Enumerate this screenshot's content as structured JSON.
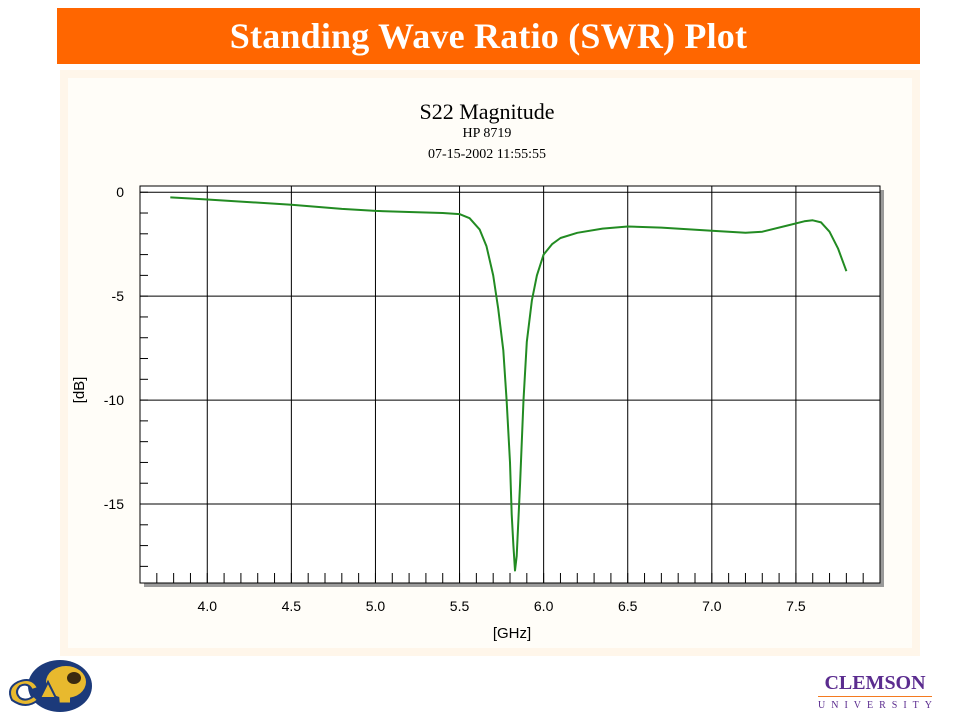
{
  "slide": {
    "title": "Standing Wave Ratio (SWR) Plot"
  },
  "chart_data": {
    "type": "line",
    "title": "S22  Magnitude",
    "subtitle_lines": [
      "HP 8719",
      "07-15-2002 11:55:55"
    ],
    "xlabel": "[GHz]",
    "ylabel": "[dB]",
    "xlim": [
      3.6,
      8.0
    ],
    "ylim": [
      -18.8,
      0.3
    ],
    "xticks": [
      "4.0",
      "4.5",
      "5.0",
      "5.5",
      "6.0",
      "6.5",
      "7.0",
      "7.5"
    ],
    "xtick_values": [
      4.0,
      4.5,
      5.0,
      5.5,
      6.0,
      6.5,
      7.0,
      7.5
    ],
    "yticks": [
      "0",
      "-5",
      "-10",
      "-15"
    ],
    "ytick_values": [
      0,
      -5,
      -10,
      -15
    ],
    "grid": true,
    "series": [
      {
        "color": "#228b22",
        "x": [
          3.78,
          3.9,
          4.0,
          4.2,
          4.5,
          4.8,
          5.0,
          5.2,
          5.4,
          5.5,
          5.56,
          5.62,
          5.66,
          5.7,
          5.73,
          5.76,
          5.78,
          5.8,
          5.81,
          5.82,
          5.83,
          5.84,
          5.86,
          5.88,
          5.9,
          5.93,
          5.96,
          6.0,
          6.05,
          6.1,
          6.2,
          6.35,
          6.5,
          6.7,
          7.0,
          7.2,
          7.3,
          7.45,
          7.55,
          7.6,
          7.65,
          7.7,
          7.75,
          7.8
        ],
        "y": [
          -0.25,
          -0.3,
          -0.35,
          -0.45,
          -0.6,
          -0.8,
          -0.9,
          -0.95,
          -1.0,
          -1.05,
          -1.25,
          -1.8,
          -2.6,
          -4.0,
          -5.6,
          -7.6,
          -10.0,
          -13.0,
          -15.5,
          -17.0,
          -18.2,
          -17.5,
          -14.0,
          -10.0,
          -7.2,
          -5.2,
          -4.0,
          -3.0,
          -2.5,
          -2.2,
          -1.95,
          -1.75,
          -1.65,
          -1.7,
          -1.85,
          -1.95,
          -1.9,
          -1.6,
          -1.4,
          -1.35,
          -1.45,
          -1.9,
          -2.7,
          -3.8
        ]
      }
    ]
  },
  "logos": {
    "left": "Cal",
    "right_name": "CLEMSON",
    "right_sub": "UNIVERSITY",
    "left_icon": "cal-bear-logo-icon",
    "right_color": "#5b2c8f",
    "accent": "#f47a20"
  }
}
